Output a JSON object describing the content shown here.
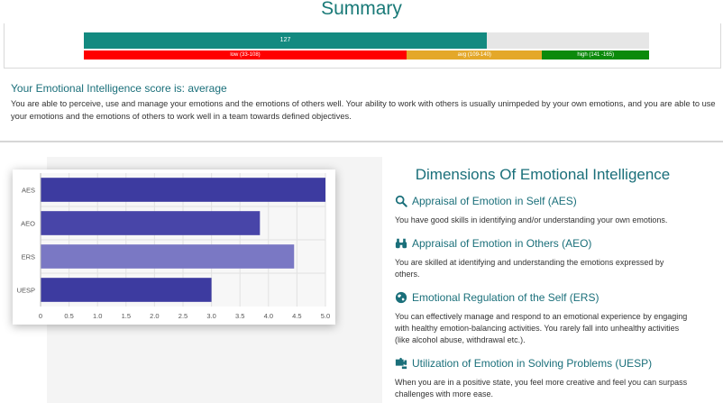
{
  "summary": {
    "title": "Summary"
  },
  "score": {
    "value": "127",
    "fraction": 0.713,
    "ranges": [
      {
        "label": "low (33-108)",
        "fraction": 0.571,
        "color": "#ff0000"
      },
      {
        "label": "avg (109-140)",
        "fraction": 0.24,
        "color": "#e4a82a"
      },
      {
        "label": "high (141 -165)",
        "fraction": 0.189,
        "color": "#0c8a0c"
      }
    ]
  },
  "result": {
    "title": "Your Emotional Intelligence score is: average",
    "description": "You are able to perceive, use and manage your emotions and the emotions of others well. Your ability to work with others is usually unimpeded by your own emotions, and you are able to use your emotions and the emotions of others to work well in a team towards defined objectives."
  },
  "chart_data": {
    "type": "bar",
    "orientation": "horizontal",
    "categories": [
      "AES",
      "AEO",
      "ERS",
      "UESP"
    ],
    "values": [
      5.0,
      3.85,
      4.45,
      3.0
    ],
    "colors": [
      "#3d3ba0",
      "#4845a8",
      "#7a78c4",
      "#3d3ba0"
    ],
    "xlim": [
      0,
      5.0
    ],
    "ticks": [
      "0",
      "0.5",
      "1.0",
      "1.5",
      "2.0",
      "2.5",
      "3.0",
      "3.5",
      "4.0",
      "4.5",
      "5.0"
    ],
    "grid": true
  },
  "dimensions": {
    "title": "Dimensions Of Emotional Intelligence",
    "items": [
      {
        "icon": "magnifier-icon",
        "title": "Appraisal of Emotion in Self (AES)",
        "description": "You have good skills in identifying and/or understanding your own emotions."
      },
      {
        "icon": "binoculars-icon",
        "title": "Appraisal of Emotion in Others (AEO)",
        "description": "You are skilled at identifying and understanding the emotions expressed by others."
      },
      {
        "icon": "globe-icon",
        "title": "Emotional Regulation of the Self (ERS)",
        "description": "You can effectively manage and respond to an emotional experience by engaging with healthy emotion-balancing activities. You rarely fall into unhealthy activities (like alcohol abuse, withdrawal etc.)."
      },
      {
        "icon": "puzzle-icon",
        "title": "Utilization of Emotion in Solving Problems (UESP)",
        "description": "When you are in a positive state, you feel more creative and feel you can surpass challenges with more ease."
      }
    ]
  }
}
